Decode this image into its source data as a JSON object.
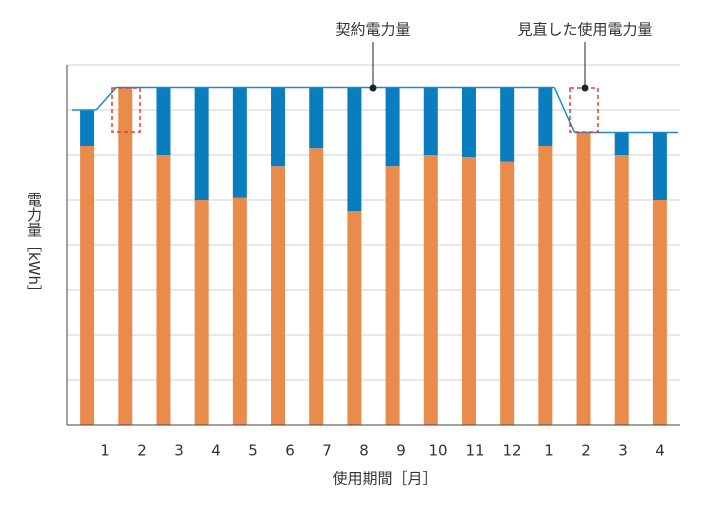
{
  "chart_data": {
    "type": "bar",
    "stacked": true,
    "categories": [
      "1",
      "2",
      "3",
      "4",
      "5",
      "6",
      "7",
      "8",
      "9",
      "10",
      "11",
      "12",
      "1",
      "2",
      "3",
      "4"
    ],
    "series": [
      {
        "color": "#e98b4b",
        "values": [
          6.2,
          7.5,
          6.0,
          5.0,
          5.05,
          5.75,
          6.15,
          4.75,
          5.75,
          6.0,
          5.95,
          5.85,
          6.2,
          6.5,
          6.0,
          5.0
        ]
      },
      {
        "color": "#0a7dbe",
        "values": [
          0.8,
          0,
          1.5,
          2.5,
          2.45,
          1.75,
          1.35,
          2.75,
          1.75,
          1.5,
          1.55,
          1.65,
          1.3,
          0,
          0.5,
          1.5
        ]
      }
    ],
    "contract_line": {
      "color": "#1a8bcb",
      "values": [
        7.0,
        7.5,
        7.5,
        7.5,
        7.5,
        7.5,
        7.5,
        7.5,
        7.5,
        7.5,
        7.5,
        7.5,
        7.5,
        6.5,
        6.5,
        6.5
      ]
    },
    "ylim": [
      0,
      8
    ],
    "ygrid": [
      1,
      2,
      3,
      4,
      5,
      6,
      7,
      8
    ],
    "grid": true,
    "ylabel": "電力量［kWh］",
    "xlabel": "使用期間［月］",
    "annotations": [
      "契約電力量",
      "見直した使用電力量"
    ]
  }
}
